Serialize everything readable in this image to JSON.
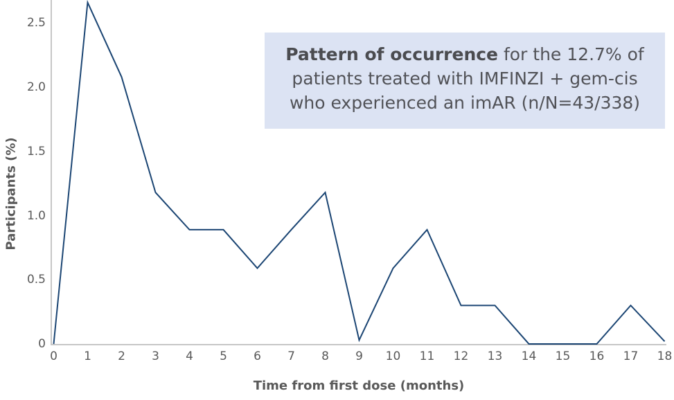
{
  "annotation": {
    "bold": "Pattern of occurrence",
    "line1_rest": " for the 12.7% of",
    "line2": "patients treated with IMFINZI + gem-cis",
    "line3": "who experienced an imAR (n/N=43/338)"
  },
  "chart_data": {
    "type": "line",
    "title": "",
    "xlabel": "Time from first dose (months)",
    "ylabel": "Participants (%)",
    "x": [
      0,
      1,
      2,
      3,
      4,
      5,
      6,
      7,
      8,
      9,
      10,
      11,
      12,
      13,
      14,
      15,
      16,
      17,
      18
    ],
    "y": [
      0,
      2.66,
      2.08,
      1.18,
      0.89,
      0.89,
      0.59,
      0.89,
      1.18,
      0.03,
      0.59,
      0.89,
      0.3,
      0.3,
      0,
      0,
      0,
      0.3,
      0.02
    ],
    "x_tick_labels": [
      "0",
      "1",
      "2",
      "3",
      "4",
      "5",
      "6",
      "7",
      "8",
      "9",
      "10",
      "11",
      "12",
      "13",
      "14",
      "15",
      "16",
      "17",
      "18"
    ],
    "y_tick_labels": [
      "2.5",
      "2.0",
      "1.5",
      "1.0",
      "0.5",
      "0"
    ],
    "y_tick_values": [
      2.5,
      2.0,
      1.5,
      1.0,
      0.5,
      0
    ],
    "xlim": [
      0,
      18
    ],
    "ylim": [
      0,
      2.7
    ],
    "grid": false,
    "legend": false
  },
  "colors": {
    "line": "#1b4573",
    "axis": "#c6c6c6",
    "tick_text": "#595959",
    "axis_title_text": "#595959",
    "annotation_bg": "#dce3f3",
    "annotation_text": "#515257"
  }
}
